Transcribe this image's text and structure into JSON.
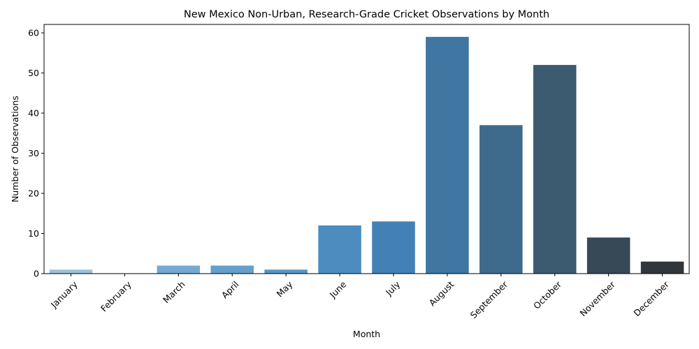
{
  "chart_data": {
    "type": "bar",
    "title": "New Mexico Non-Urban, Research-Grade Cricket Observations by Month",
    "xlabel": "Month",
    "ylabel": "Number of Observations",
    "categories": [
      "January",
      "February",
      "March",
      "April",
      "May",
      "June",
      "July",
      "August",
      "September",
      "October",
      "November",
      "December"
    ],
    "values": [
      1,
      0,
      2,
      2,
      1,
      12,
      13,
      59,
      37,
      52,
      9,
      3
    ],
    "colors": [
      "#9ac1dc",
      "#86b3d6",
      "#75a9d0",
      "#669fc9",
      "#5895c4",
      "#4d8cbf",
      "#4380b5",
      "#3f76a2",
      "#3e6b8c",
      "#3c5b70",
      "#374857",
      "#31363c"
    ],
    "ylim": [
      0,
      62.1
    ],
    "yticks": [
      0,
      10,
      20,
      30,
      40,
      50,
      60
    ],
    "grid": false,
    "legend": false
  }
}
